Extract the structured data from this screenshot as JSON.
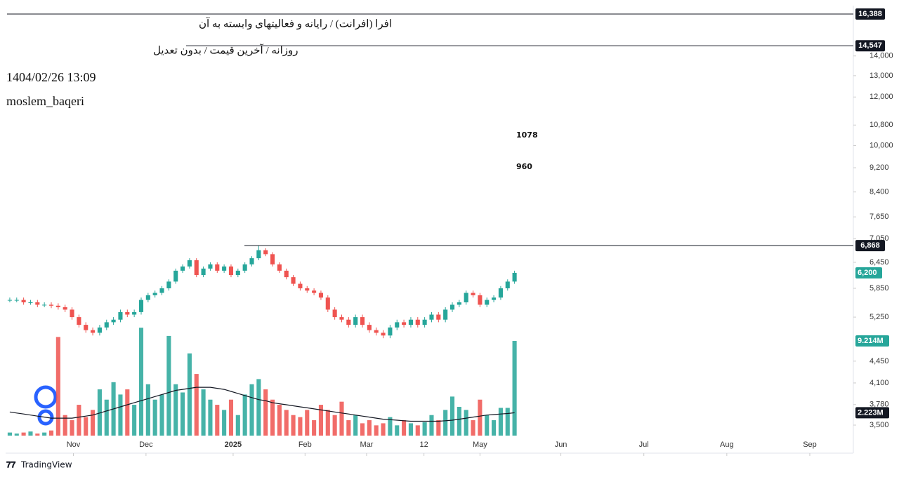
{
  "chart_data": {
    "type": "candlestick",
    "header": [
      "افرا (افرانت) / رایانه و فعالیتهای وابسته به آن",
      "روزانه / آخرین قیمت / بدون تعدیل",
      "1404/02/26 13:09",
      "moslem_baqeri"
    ],
    "annotations": [
      "1078",
      "960"
    ],
    "brand": "TradingView",
    "up_color": "#26a69a",
    "down_color": "#ef5350",
    "log_scale": true,
    "ylim": [
      3150,
      16824
    ],
    "yticks": [
      {
        "value": 3500,
        "label": "3,500"
      },
      {
        "value": 3780,
        "label": "3,780"
      },
      {
        "value": 4100,
        "label": "4,100"
      },
      {
        "value": 4450,
        "label": "4,450"
      },
      {
        "value": 5250,
        "label": "5,250"
      },
      {
        "value": 5850,
        "label": "5,850"
      },
      {
        "value": 6450,
        "label": "6,450"
      },
      {
        "value": 7050,
        "label": "7,050"
      },
      {
        "value": 7650,
        "label": "7,650"
      },
      {
        "value": 8400,
        "label": "8,400"
      },
      {
        "value": 9200,
        "label": "9,200"
      },
      {
        "value": 10000,
        "label": "10,000"
      },
      {
        "value": 10800,
        "label": "10,800"
      },
      {
        "value": 12000,
        "label": "12,000"
      },
      {
        "value": 13000,
        "label": "13,000"
      },
      {
        "value": 14000,
        "label": "14,000"
      }
    ],
    "xlim": [
      -0.4,
      122
    ],
    "xticks": [
      {
        "value": 9.2,
        "label": "Nov"
      },
      {
        "value": 19.7,
        "label": "Dec"
      },
      {
        "value": 32.3,
        "label": "2025"
      },
      {
        "value": 42.7,
        "label": "Feb"
      },
      {
        "value": 51.6,
        "label": "Mar"
      },
      {
        "value": 59.9,
        "label": "12"
      },
      {
        "value": 68.0,
        "label": "May"
      },
      {
        "value": 79.7,
        "label": "Jun"
      },
      {
        "value": 91.7,
        "label": "Jul"
      },
      {
        "value": 103.7,
        "label": "Aug"
      },
      {
        "value": 115.7,
        "label": "Sep"
      }
    ],
    "levels": [
      {
        "value": 16388,
        "label": "16,388"
      },
      {
        "value": 14547,
        "label": "14,547"
      },
      {
        "value": 6868,
        "label": "6,868"
      }
    ],
    "last_price": {
      "value": 6200,
      "label": "6,200"
    },
    "vlim": [
      0,
      40
    ],
    "last_volume": {
      "value": 9.214,
      "label": "9.214M"
    },
    "last_volume_ma": {
      "value": 2.223,
      "label": "2.223M"
    },
    "open": [
      5600,
      5600,
      5600,
      5550,
      5550,
      5500,
      5500,
      5480,
      5450,
      5400,
      5250,
      5100,
      5000,
      4950,
      5050,
      5150,
      5200,
      5350,
      5300,
      5350,
      5600,
      5700,
      5750,
      5850,
      6000,
      6250,
      6350,
      6500,
      6150,
      6300,
      6400,
      6250,
      6350,
      6150,
      6250,
      6400,
      6550,
      6750,
      6650,
      6400,
      6250,
      6100,
      5950,
      5850,
      5800,
      5750,
      5650,
      5400,
      5250,
      5200,
      5100,
      5250,
      5100,
      5000,
      4950,
      4900,
      5050,
      5150,
      5100,
      5200,
      5100,
      5200,
      5300,
      5200,
      5400,
      5500,
      5550,
      5750,
      5700,
      5500,
      5600,
      5650,
      5850,
      6000
    ],
    "high": [
      5650,
      5650,
      5650,
      5600,
      5600,
      5550,
      5550,
      5530,
      5500,
      5450,
      5300,
      5150,
      5050,
      5100,
      5200,
      5250,
      5400,
      5400,
      5400,
      5650,
      5750,
      5800,
      5900,
      6050,
      6300,
      6400,
      6550,
      6550,
      6350,
      6450,
      6450,
      6400,
      6400,
      6300,
      6450,
      6600,
      6868,
      6800,
      6700,
      6450,
      6300,
      6150,
      6000,
      5900,
      5850,
      5800,
      5700,
      5450,
      5300,
      5250,
      5300,
      5300,
      5150,
      5050,
      5000,
      5100,
      5200,
      5200,
      5250,
      5250,
      5250,
      5350,
      5350,
      5450,
      5550,
      5600,
      5800,
      5800,
      5750,
      5650,
      5700,
      5900,
      6050,
      6250
    ],
    "low": [
      5550,
      5550,
      5500,
      5500,
      5450,
      5450,
      5430,
      5400,
      5350,
      5200,
      5050,
      4950,
      4900,
      4900,
      5000,
      5100,
      5150,
      5250,
      5250,
      5300,
      5550,
      5650,
      5700,
      5800,
      5950,
      6200,
      6300,
      6100,
      6100,
      6250,
      6200,
      6200,
      6100,
      6100,
      6200,
      6350,
      6500,
      6600,
      6350,
      6200,
      6050,
      5900,
      5800,
      5750,
      5700,
      5600,
      5350,
      5200,
      5150,
      5050,
      5050,
      5050,
      4950,
      4900,
      4850,
      4850,
      5000,
      5050,
      5050,
      5050,
      5050,
      5150,
      5150,
      5150,
      5350,
      5450,
      5500,
      5650,
      5450,
      5450,
      5550,
      5600,
      5800,
      5950
    ],
    "close": [
      5600,
      5600,
      5550,
      5550,
      5500,
      5500,
      5480,
      5450,
      5400,
      5250,
      5100,
      5000,
      4950,
      5050,
      5150,
      5200,
      5350,
      5300,
      5350,
      5600,
      5700,
      5750,
      5850,
      6000,
      6250,
      6350,
      6500,
      6150,
      6300,
      6400,
      6250,
      6350,
      6150,
      6250,
      6400,
      6550,
      6750,
      6650,
      6400,
      6250,
      6100,
      5950,
      5850,
      5800,
      5750,
      5650,
      5400,
      5250,
      5200,
      5100,
      5250,
      5100,
      5000,
      4950,
      4900,
      5050,
      5150,
      5100,
      5200,
      5100,
      5200,
      5300,
      5200,
      5400,
      5500,
      5550,
      5750,
      5700,
      5500,
      5600,
      5650,
      5850,
      6000,
      6200
    ],
    "volume": [
      0.3,
      0.2,
      0.3,
      0.4,
      0.2,
      0.3,
      0.5,
      9.6,
      2.0,
      1.5,
      3.0,
      1.8,
      2.5,
      4.5,
      3.5,
      5.2,
      4.0,
      4.5,
      3.0,
      10.5,
      5.0,
      3.5,
      4.0,
      9.7,
      5.0,
      4.2,
      8.0,
      6.0,
      4.5,
      3.5,
      3.0,
      2.5,
      3.5,
      2.0,
      4.0,
      5.0,
      5.5,
      4.5,
      3.5,
      3.0,
      2.5,
      2.0,
      1.8,
      2.5,
      1.5,
      3.0,
      2.5,
      2.0,
      3.3,
      1.5,
      2.0,
      1.2,
      1.5,
      1.0,
      1.2,
      1.8,
      1.0,
      1.5,
      1.2,
      1.0,
      1.3,
      2.0,
      1.5,
      2.5,
      3.8,
      2.8,
      2.5,
      1.5,
      3.5,
      2.0,
      1.5,
      2.7,
      2.7,
      9.214
    ],
    "volume_ma": [
      2.3,
      2.2,
      2.1,
      2.0,
      1.9,
      1.8,
      1.7,
      1.7,
      1.7,
      1.7,
      1.8,
      1.9,
      2.0,
      2.2,
      2.4,
      2.6,
      2.8,
      3.0,
      3.2,
      3.4,
      3.6,
      3.8,
      4.0,
      4.2,
      4.4,
      4.5,
      4.6,
      4.7,
      4.7,
      4.7,
      4.6,
      4.5,
      4.3,
      4.1,
      3.9,
      3.7,
      3.5,
      3.4,
      3.2,
      3.1,
      3.0,
      2.9,
      2.8,
      2.7,
      2.6,
      2.5,
      2.4,
      2.3,
      2.2,
      2.1,
      2.0,
      1.9,
      1.8,
      1.7,
      1.6,
      1.55,
      1.5,
      1.45,
      1.4,
      1.4,
      1.4,
      1.4,
      1.4,
      1.45,
      1.5,
      1.6,
      1.7,
      1.8,
      1.9,
      2.0,
      2.05,
      2.1,
      2.15,
      2.223
    ]
  }
}
